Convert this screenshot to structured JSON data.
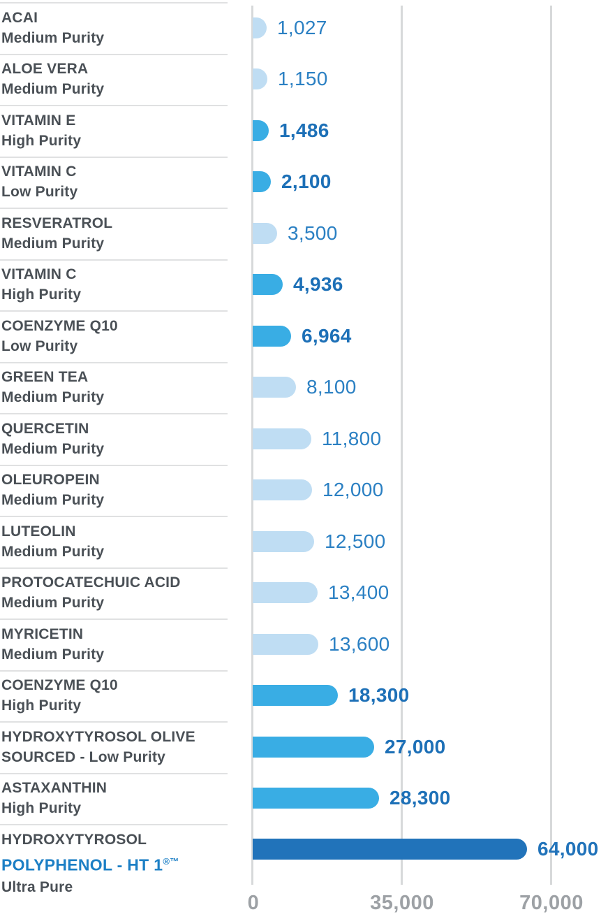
{
  "chart_data": {
    "type": "bar",
    "orientation": "horizontal",
    "title": "",
    "xlabel": "",
    "ylabel": "",
    "xlim": [
      0,
      70000
    ],
    "x_ticks": [
      "0",
      "35,000",
      "70,000"
    ],
    "grid": true,
    "legend": "none",
    "rows": [
      {
        "name": "ACAI",
        "purity": "Medium Purity",
        "value": 1027,
        "value_label": "1,027",
        "tier": "medium"
      },
      {
        "name": "ALOE VERA",
        "purity": "Medium Purity",
        "value": 1150,
        "value_label": "1,150",
        "tier": "medium"
      },
      {
        "name": "VITAMIN E",
        "purity": "High Purity",
        "value": 1486,
        "value_label": "1,486",
        "tier": "accent"
      },
      {
        "name": "VITAMIN C",
        "purity": "Low Purity",
        "value": 2100,
        "value_label": "2,100",
        "tier": "accent"
      },
      {
        "name": "RESVERATROL",
        "purity": "Medium Purity",
        "value": 3500,
        "value_label": "3,500",
        "tier": "medium"
      },
      {
        "name": "VITAMIN C",
        "purity": "High Purity",
        "value": 4936,
        "value_label": "4,936",
        "tier": "accent"
      },
      {
        "name": "COENZYME Q10",
        "purity": "Low Purity",
        "value": 6964,
        "value_label": "6,964",
        "tier": "accent"
      },
      {
        "name": "GREEN TEA",
        "purity": "Medium Purity",
        "value": 8100,
        "value_label": "8,100",
        "tier": "medium"
      },
      {
        "name": "QUERCETIN",
        "purity": "Medium Purity",
        "value": 11800,
        "value_label": "11,800",
        "tier": "medium"
      },
      {
        "name": "OLEUROPEIN",
        "purity": "Medium Purity",
        "value": 12000,
        "value_label": "12,000",
        "tier": "medium"
      },
      {
        "name": "LUTEOLIN",
        "purity": "Medium Purity",
        "value": 12500,
        "value_label": "12,500",
        "tier": "medium"
      },
      {
        "name": "PROTOCATECHUIC ACID",
        "purity": "Medium Purity",
        "value": 13400,
        "value_label": "13,400",
        "tier": "medium"
      },
      {
        "name": "MYRICETIN",
        "purity": "Medium Purity",
        "value": 13600,
        "value_label": "13,600",
        "tier": "medium"
      },
      {
        "name": "COENZYME Q10",
        "purity": "High Purity",
        "value": 18300,
        "value_label": "18,300",
        "tier": "accent"
      },
      {
        "name": "HYDROXYTYROSOL OLIVE",
        "purity": "SOURCED - Low Purity",
        "value": 27000,
        "value_label": "27,000",
        "tier": "accent"
      },
      {
        "name": "ASTAXANTHIN",
        "purity": "High Purity",
        "value": 28300,
        "value_label": "28,300",
        "tier": "accent"
      },
      {
        "name": "HYDROXYTYROSOL",
        "accent_line": "POLYPHENOL - HT 1",
        "accent_sup": "®™",
        "purity": "Ultra Pure",
        "value": 64000,
        "value_label": "64,000",
        "tier": "ultra"
      }
    ]
  },
  "colors": {
    "bar_medium_purity": "#bfddf3",
    "bar_high_low_purity": "#39ade4",
    "bar_ultra_pure": "#2173ba",
    "value_text_medium": "#2b80c3",
    "value_text_bold": "#1d70b7",
    "value_text_ultra": "#2173ba",
    "label_text": "#4a5056",
    "label_accent_blue": "#1c7fc5",
    "gridline": "#d7d9da",
    "row_divider": "#e0e1e2",
    "axis_tick_text": "#9da1a5",
    "background": "#ffffff"
  }
}
